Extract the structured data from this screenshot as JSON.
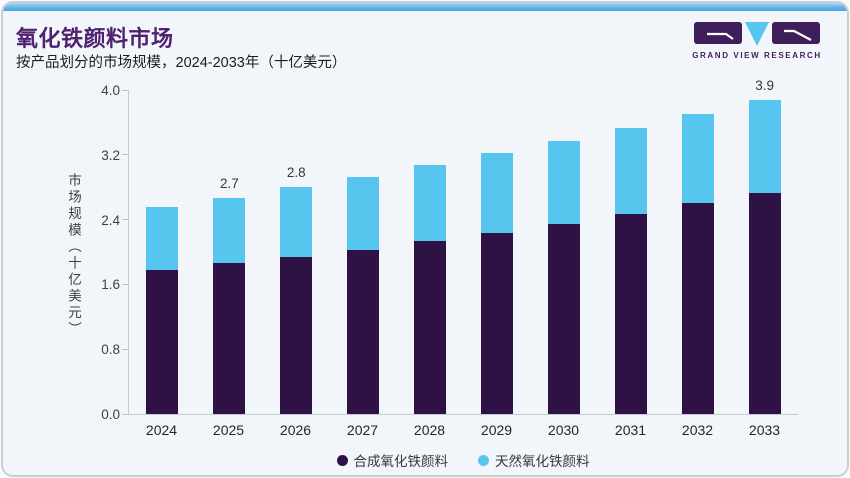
{
  "header": {
    "title": "氧化铁颜料市场",
    "subtitle": "按产品划分的市场规模，2024-2033年（十亿美元）"
  },
  "logo": {
    "text": "GRAND VIEW RESEARCH",
    "purple": "#3e1f5a",
    "blue": "#57c6ef"
  },
  "colors": {
    "synthetic": "#2e1245",
    "natural": "#57c6ef",
    "accent_strip": "#62b6e7",
    "title": "#4f2170",
    "background": "#f2f6fa"
  },
  "chart_data": {
    "type": "bar",
    "stacked": true,
    "title": "氧化铁颜料市场",
    "subtitle": "按产品划分的市场规模，2024-2033年（十亿美元）",
    "ylabel": "市场规模（十亿美元）",
    "xlabel": "",
    "categories": [
      "2024",
      "2025",
      "2026",
      "2027",
      "2028",
      "2029",
      "2030",
      "2031",
      "2032",
      "2033"
    ],
    "series": [
      {
        "name": "合成氧化铁颜料",
        "color": "#2e1245",
        "values": [
          1.78,
          1.86,
          1.94,
          2.03,
          2.13,
          2.24,
          2.35,
          2.47,
          2.6,
          2.73
        ]
      },
      {
        "name": "天然氧化铁颜料",
        "color": "#57c6ef",
        "values": [
          0.77,
          0.81,
          0.86,
          0.9,
          0.94,
          0.98,
          1.02,
          1.06,
          1.1,
          1.15
        ]
      }
    ],
    "totals": [
      2.55,
      2.67,
      2.8,
      2.93,
      3.07,
      3.22,
      3.37,
      3.53,
      3.7,
      3.88
    ],
    "total_labels": {
      "2025": "2.7",
      "2026": "2.8",
      "2033": "3.9"
    },
    "yticks": [
      "0.0",
      "0.8",
      "1.6",
      "2.4",
      "3.2",
      "4.0"
    ],
    "ylim": [
      0,
      4.0
    ],
    "grid": false,
    "legend_position": "bottom"
  }
}
